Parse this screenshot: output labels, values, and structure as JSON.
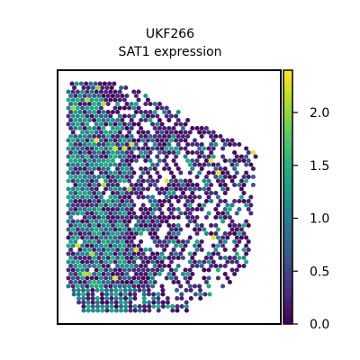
{
  "chart_data": {
    "type": "scatter",
    "plot_kind": "spatial transcriptomics spot map (hexagonal grid)",
    "title": "UKF266",
    "subtitle": "SAT1 expression",
    "xlabel": "",
    "ylabel": "",
    "axes_ticks_visible": false,
    "grid": false,
    "colormap": "viridis",
    "colorbar": {
      "label": "",
      "range": [
        0.0,
        2.4
      ],
      "ticks": [
        0.0,
        0.5,
        1.0,
        1.5,
        2.0
      ],
      "tick_labels": [
        "0.0",
        "0.5",
        "1.0",
        "1.5",
        "2.0"
      ]
    },
    "value_distribution_note": "most spots dark purple (0.0-0.4), many teal/blue (0.8-1.6), a few bright yellow-green (>2.0)",
    "colors": {
      "low": "#440154",
      "mid": "#21918c",
      "high": "#fde725",
      "frame": "#000000"
    }
  }
}
